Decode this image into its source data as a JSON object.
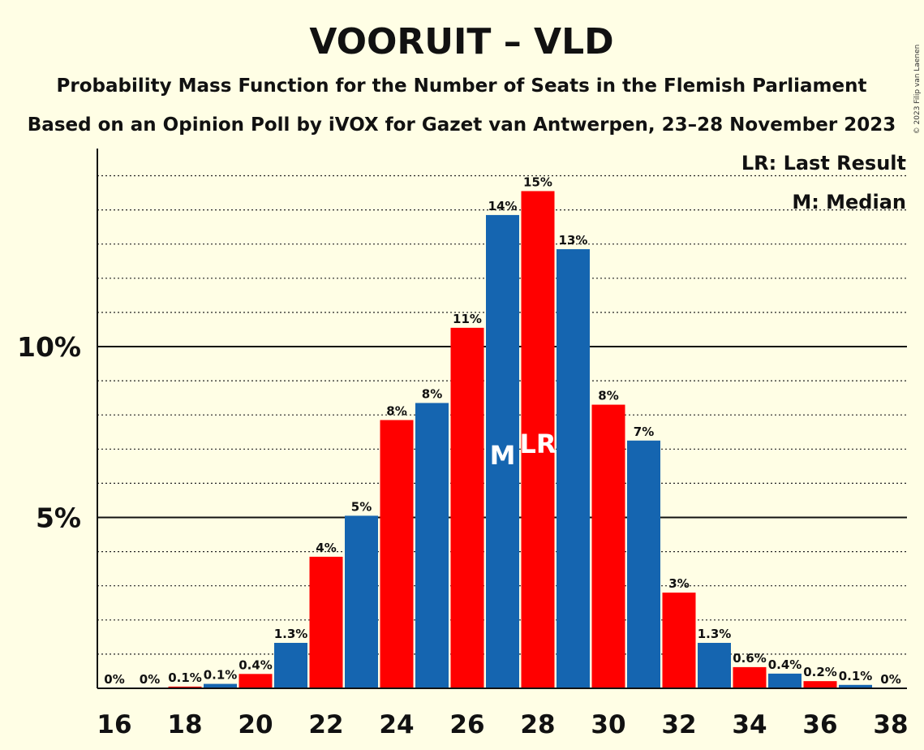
{
  "chart_data": {
    "type": "bar",
    "title": "VOORUIT – VLD",
    "subtitle": "Probability Mass Function for the Number of Seats in the Flemish Parliament",
    "subtitle2": "Based on an Opinion Poll by iVOX for Gazet van Antwerpen, 23–28 November 2023",
    "copyright": "© 2023 Filip van Laenen",
    "legend": {
      "placement": "top-right",
      "lr": "LR: Last Result",
      "m": "M: Median"
    },
    "x": [
      16,
      17,
      18,
      19,
      20,
      21,
      22,
      23,
      24,
      25,
      26,
      27,
      28,
      29,
      30,
      31,
      32,
      33,
      34,
      35,
      36,
      37,
      38
    ],
    "values": [
      0,
      0,
      0.05,
      0.13,
      0.42,
      1.33,
      3.85,
      5.05,
      7.85,
      8.35,
      10.55,
      13.85,
      14.55,
      12.85,
      8.3,
      7.25,
      2.8,
      1.33,
      0.62,
      0.43,
      0.21,
      0.1,
      0
    ],
    "labels": [
      "0%",
      "0%",
      "0.1%",
      "0.1%",
      "0.4%",
      "1.3%",
      "4%",
      "5%",
      "8%",
      "8%",
      "11%",
      "14%",
      "15%",
      "13%",
      "8%",
      "7%",
      "3%",
      "1.3%",
      "0.6%",
      "0.4%",
      "0.2%",
      "0.1%",
      "0%"
    ],
    "x_tick_labels": [
      "16",
      "18",
      "20",
      "22",
      "24",
      "26",
      "28",
      "30",
      "32",
      "34",
      "36",
      "38"
    ],
    "y_ticks": [
      {
        "value": 5,
        "label": "5%"
      },
      {
        "value": 10,
        "label": "10%"
      }
    ],
    "y_minor_step": 1,
    "ylim": [
      0,
      15.8
    ],
    "grid": true,
    "colors": {
      "even": "#FF0000",
      "odd": "#1565B0",
      "background": "#FFFEE5"
    },
    "median_seat": 27,
    "median_mark": "M",
    "last_result_seat": 28,
    "last_result_mark": "LR"
  }
}
